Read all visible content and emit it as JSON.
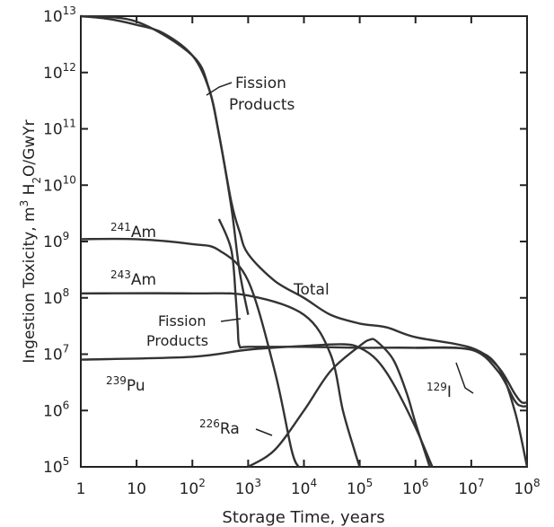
{
  "chart_data": {
    "type": "line",
    "xlabel": "Storage Time, years",
    "ylabel_parts": [
      "Ingestion Toxicity, m",
      "3",
      " H",
      "2",
      "O/GwYr"
    ],
    "x_scale": "log",
    "y_scale": "log",
    "xlim": [
      1,
      100000000
    ],
    "ylim": [
      100000,
      10000000000000
    ],
    "x_ticks": [
      {
        "value": 1,
        "label": "1"
      },
      {
        "value": 10,
        "label": "10"
      },
      {
        "value": 100,
        "base": "10",
        "exp": "2"
      },
      {
        "value": 1000,
        "base": "10",
        "exp": "3"
      },
      {
        "value": 10000,
        "base": "10",
        "exp": "4"
      },
      {
        "value": 100000,
        "base": "10",
        "exp": "5"
      },
      {
        "value": 1000000,
        "base": "10",
        "exp": "6"
      },
      {
        "value": 10000000,
        "base": "10",
        "exp": "7"
      },
      {
        "value": 100000000,
        "base": "10",
        "exp": "8"
      }
    ],
    "y_ticks": [
      {
        "value": 100000,
        "base": "10",
        "exp": "5"
      },
      {
        "value": 1000000,
        "base": "10",
        "exp": "6"
      },
      {
        "value": 10000000,
        "base": "10",
        "exp": "7"
      },
      {
        "value": 100000000,
        "base": "10",
        "exp": "8"
      },
      {
        "value": 1000000000,
        "base": "10",
        "exp": "9"
      },
      {
        "value": 10000000000,
        "base": "10",
        "exp": "10"
      },
      {
        "value": 100000000000,
        "base": "10",
        "exp": "11"
      },
      {
        "value": 1000000000000,
        "base": "10",
        "exp": "12"
      },
      {
        "value": 10000000000000,
        "base": "10",
        "exp": "13"
      }
    ],
    "grid": false,
    "series": [
      {
        "label_parts": [
          "Fission",
          "Products"
        ],
        "x": [
          1,
          3,
          10,
          30,
          100,
          200,
          300,
          500,
          700,
          1000
        ],
        "y": [
          10000000000000.0,
          9000000000000.0,
          7000000000000.0,
          5000000000000.0,
          2000000000000.0,
          500000000000.0,
          80000000000.0,
          4000000000.0,
          300000000.0,
          50000000.0
        ]
      },
      {
        "label_parts": [
          "241",
          "Am"
        ],
        "x": [
          1,
          10,
          100,
          300,
          1000,
          3000,
          6000,
          8000
        ],
        "y": [
          1100000000.0,
          1100000000.0,
          900000000.0,
          700000000.0,
          200000000.0,
          5000000.0,
          200000.0,
          100000.0
        ]
      },
      {
        "label_parts": [
          "243",
          "Am"
        ],
        "x": [
          1,
          100,
          1000,
          10000,
          30000,
          50000,
          80000,
          100000
        ],
        "y": [
          120000000.0,
          120000000.0,
          110000000.0,
          50000000.0,
          10000000.0,
          1000000.0,
          200000.0,
          100000.0
        ]
      },
      {
        "label_parts": [
          "Fission",
          "Products"
        ],
        "x": [
          300,
          500,
          600,
          650,
          700,
          1000,
          10000.0,
          100000.0,
          1000000.0,
          10000000.0,
          30000000.0,
          60000000.0,
          100000000.0
        ],
        "y": [
          2500000000.0,
          700000000.0,
          100000000.0,
          30000000.0,
          14000000.0,
          13500000.0,
          13500000.0,
          13000000.0,
          13000000.0,
          12000000.0,
          6000000.0,
          1000000.0,
          100000.0
        ]
      },
      {
        "label_parts": [
          "239",
          "Pu"
        ],
        "x": [
          1,
          100,
          1000,
          10000,
          50000,
          100000,
          200000,
          400000,
          1000000,
          2000000
        ],
        "y": [
          8000000.0,
          9000000.0,
          12000000.0,
          14000000.0,
          15000000.0,
          13000000.0,
          8000000.0,
          3000000.0,
          500000.0,
          100000.0
        ]
      },
      {
        "label_parts": [
          "226",
          "Ra"
        ],
        "x": [
          1000,
          3000,
          10000,
          30000,
          100000,
          150000,
          200000,
          400000,
          700000,
          1000000,
          1800000
        ],
        "y": [
          100000.0,
          200000.0,
          1000000.0,
          5000000.0,
          14000000.0,
          18000000.0,
          17000000.0,
          8000000.0,
          2000000.0,
          600000.0,
          100000.0
        ]
      },
      {
        "label_parts": [
          "129",
          "I"
        ],
        "x": [
          1000000.0,
          10000000.0,
          30000000.0,
          60000000.0,
          80000000.0,
          100000000.0
        ],
        "y": [
          13000000.0,
          12000000.0,
          5000000.0,
          1500000.0,
          1200000.0,
          1200000.0
        ]
      },
      {
        "label_parts": [
          "Total"
        ],
        "x": [
          1,
          10,
          100,
          200,
          300,
          500,
          700,
          1000,
          3000,
          10000,
          30000,
          100000,
          300000,
          1000000,
          10000000.0,
          30000000.0,
          60000000.0,
          80000000.0,
          100000000.0
        ],
        "y": [
          10000000000000.0,
          8000000000000.0,
          2000000000000.0,
          500000000000.0,
          80000000000.0,
          5000000000.0,
          1500000000.0,
          600000000.0,
          200000000.0,
          100000000.0,
          50000000.0,
          35000000.0,
          30000000.0,
          20000000.0,
          13000000.0,
          6000000.0,
          2000000.0,
          1400000.0,
          1400000.0
        ]
      }
    ]
  }
}
